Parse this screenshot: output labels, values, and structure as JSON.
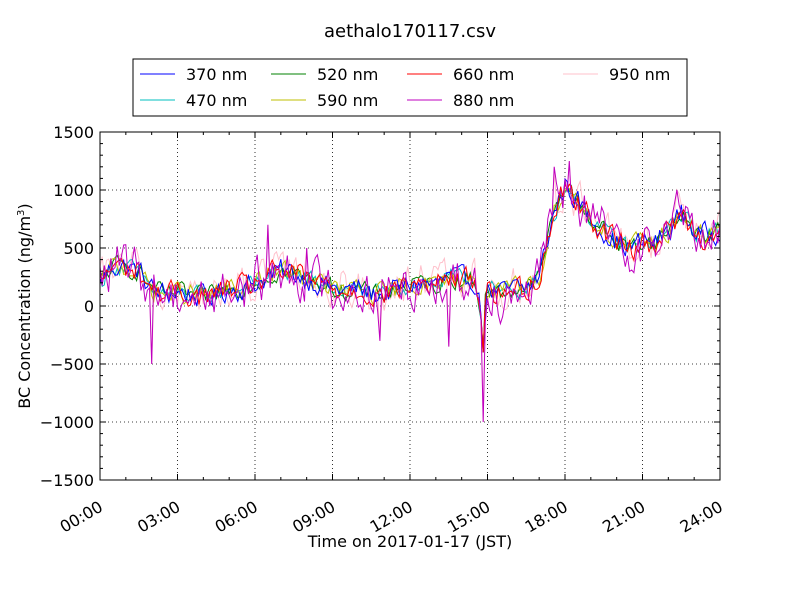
{
  "chart_data": {
    "type": "line",
    "title": "aethalo170117.csv",
    "xlabel": "Time on 2017-01-17 (JST)",
    "ylabel_main": "BC Concentration (ng/m",
    "ylabel_sup": "3",
    "ylabel_tail": ")",
    "xlim": [
      0,
      24
    ],
    "ylim": [
      -1500,
      1500
    ],
    "x_ticks": [
      0,
      3,
      6,
      9,
      12,
      15,
      18,
      21,
      24
    ],
    "x_tick_labels": [
      "00:00",
      "03:00",
      "06:00",
      "09:00",
      "12:00",
      "15:00",
      "18:00",
      "21:00",
      "24:00"
    ],
    "y_ticks": [
      -1500,
      -1000,
      -500,
      0,
      500,
      1000,
      1500
    ],
    "y_tick_labels": [
      "−1500",
      "−1000",
      "−500",
      "0",
      "500",
      "1000",
      "1500"
    ],
    "grid": true,
    "legend_placement": "top-center, above plot, 4 columns",
    "series": [
      {
        "name": "370 nm",
        "color": "#0000ff"
      },
      {
        "name": "470 nm",
        "color": "#00bfbf"
      },
      {
        "name": "520 nm",
        "color": "#008000"
      },
      {
        "name": "590 nm",
        "color": "#bfbf00"
      },
      {
        "name": "660 nm",
        "color": "#ff0000"
      },
      {
        "name": "880 nm",
        "color": "#bf00bf"
      },
      {
        "name": "950 nm",
        "color": "#ffc0cb"
      }
    ],
    "baseline": {
      "x": [
        0.0,
        0.5,
        1.0,
        1.5,
        2.0,
        2.5,
        3.0,
        3.5,
        4.0,
        4.5,
        5.0,
        5.5,
        6.0,
        6.5,
        7.0,
        7.5,
        8.0,
        8.5,
        9.0,
        9.5,
        10.0,
        10.5,
        11.0,
        11.5,
        12.0,
        12.5,
        13.0,
        13.5,
        14.0,
        14.5,
        14.8,
        15.0,
        15.5,
        16.0,
        16.5,
        17.0,
        17.5,
        18.0,
        18.5,
        19.0,
        19.5,
        20.0,
        20.5,
        21.0,
        21.5,
        22.0,
        22.5,
        23.0,
        23.5,
        24.0
      ],
      "y": [
        200,
        350,
        330,
        300,
        150,
        100,
        120,
        100,
        80,
        100,
        150,
        150,
        200,
        250,
        300,
        280,
        230,
        200,
        150,
        130,
        150,
        100,
        100,
        150,
        180,
        200,
        180,
        250,
        220,
        230,
        -100,
        150,
        100,
        150,
        150,
        250,
        750,
        1050,
        900,
        750,
        650,
        550,
        500,
        550,
        550,
        650,
        800,
        650,
        600,
        650
      ]
    },
    "spikes": {
      "x": [
        2.0,
        6.5,
        8.0,
        10.8,
        13.5,
        14.8,
        17.6,
        18.2,
        22.3
      ],
      "y": [
        -500,
        700,
        500,
        -300,
        -350,
        -1000,
        1200,
        1250,
        1000
      ]
    },
    "note_values": "Each series oscillates around the shared baseline; 880 nm and 950 nm have the widest noise."
  }
}
